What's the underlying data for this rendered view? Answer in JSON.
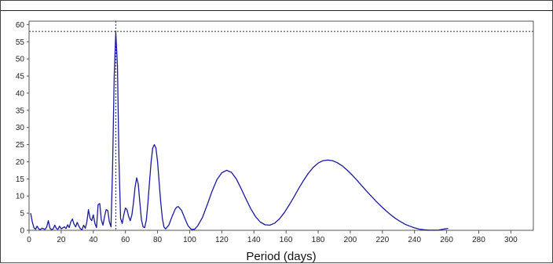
{
  "chart_data": {
    "type": "line",
    "title": "",
    "xlabel": "Period (days)",
    "ylabel": "",
    "xlim": [
      0,
      314
    ],
    "ylim": [
      0,
      61
    ],
    "x_ticks": [
      0,
      20,
      40,
      60,
      80,
      100,
      120,
      140,
      160,
      180,
      200,
      220,
      240,
      260,
      280,
      300
    ],
    "y_ticks": [
      0,
      5,
      10,
      15,
      20,
      25,
      30,
      35,
      40,
      45,
      50,
      55,
      60
    ],
    "grid": false,
    "threshold_line": {
      "y": 58,
      "style": "dashed"
    },
    "peak_marker": {
      "x": 54,
      "style": "dashed"
    },
    "line_color": "#1a1a9e",
    "series": [
      {
        "points": [
          [
            1,
            5
          ],
          [
            2,
            2.5
          ],
          [
            3,
            0.8
          ],
          [
            4,
            0.3
          ],
          [
            5,
            1.2
          ],
          [
            6,
            0.4
          ],
          [
            7,
            0.2
          ],
          [
            8,
            0.6
          ],
          [
            10,
            0.3
          ],
          [
            11,
            1.0
          ],
          [
            12,
            2.8
          ],
          [
            13,
            0.6
          ],
          [
            14,
            0.2
          ],
          [
            15,
            0.4
          ],
          [
            16,
            1.5
          ],
          [
            17,
            0.5
          ],
          [
            18,
            0.3
          ],
          [
            19,
            1.2
          ],
          [
            20,
            0.4
          ],
          [
            22,
            1.0
          ],
          [
            23,
            0.5
          ],
          [
            24,
            1.6
          ],
          [
            25,
            0.8
          ],
          [
            26,
            2.5
          ],
          [
            27,
            3.3
          ],
          [
            28,
            1.8
          ],
          [
            29,
            1.0
          ],
          [
            30,
            2.3
          ],
          [
            31,
            1.2
          ],
          [
            32,
            0.4
          ],
          [
            33,
            0.2
          ],
          [
            34,
            1.5
          ],
          [
            35,
            0.6
          ],
          [
            36,
            2.5
          ],
          [
            37,
            6.0
          ],
          [
            38,
            3.5
          ],
          [
            39,
            2.8
          ],
          [
            40,
            4.5
          ],
          [
            41,
            2.0
          ],
          [
            42,
            0.8
          ],
          [
            43,
            7.5
          ],
          [
            44,
            7.8
          ],
          [
            45,
            3.0
          ],
          [
            46,
            1.5
          ],
          [
            47,
            4.0
          ],
          [
            48,
            6.0
          ],
          [
            49,
            5.8
          ],
          [
            50,
            2.5
          ],
          [
            51,
            1.0
          ],
          [
            52,
            18
          ],
          [
            53,
            45
          ],
          [
            54,
            57.8
          ],
          [
            55,
            48
          ],
          [
            56,
            20
          ],
          [
            57,
            3.5
          ],
          [
            58,
            2.0
          ],
          [
            59,
            4.5
          ],
          [
            60,
            6.5
          ],
          [
            61,
            6.0
          ],
          [
            62,
            4.0
          ],
          [
            63,
            2.8
          ],
          [
            64,
            4.5
          ],
          [
            65,
            8.0
          ],
          [
            66,
            12.5
          ],
          [
            67,
            15.3
          ],
          [
            68,
            13.5
          ],
          [
            69,
            8.0
          ],
          [
            70,
            3.0
          ],
          [
            71,
            1.0
          ],
          [
            72,
            0.8
          ],
          [
            73,
            3.0
          ],
          [
            74,
            8.0
          ],
          [
            75,
            14.0
          ],
          [
            76,
            20.0
          ],
          [
            77,
            24.0
          ],
          [
            78,
            25.0
          ],
          [
            79,
            24.0
          ],
          [
            80,
            20.0
          ],
          [
            81,
            14.0
          ],
          [
            82,
            8.0
          ],
          [
            83,
            3.5
          ],
          [
            84,
            1.0
          ],
          [
            85,
            0.4
          ],
          [
            87,
            1.5
          ],
          [
            89,
            4.0
          ],
          [
            91,
            6.2
          ],
          [
            92,
            6.8
          ],
          [
            93,
            6.9
          ],
          [
            95,
            5.8
          ],
          [
            97,
            3.5
          ],
          [
            99,
            1.3
          ],
          [
            101,
            0.3
          ],
          [
            103,
            0.3
          ],
          [
            105,
            1.3
          ],
          [
            108,
            3.8
          ],
          [
            111,
            7.5
          ],
          [
            114,
            11.5
          ],
          [
            117,
            14.8
          ],
          [
            120,
            16.8
          ],
          [
            123,
            17.5
          ],
          [
            126,
            16.9
          ],
          [
            129,
            15.0
          ],
          [
            132,
            12.2
          ],
          [
            135,
            9.2
          ],
          [
            138,
            6.3
          ],
          [
            141,
            4.0
          ],
          [
            144,
            2.4
          ],
          [
            147,
            1.6
          ],
          [
            150,
            1.5
          ],
          [
            153,
            2.1
          ],
          [
            156,
            3.4
          ],
          [
            159,
            5.2
          ],
          [
            162,
            7.4
          ],
          [
            165,
            9.8
          ],
          [
            168,
            12.3
          ],
          [
            171,
            14.6
          ],
          [
            174,
            16.7
          ],
          [
            177,
            18.4
          ],
          [
            180,
            19.6
          ],
          [
            183,
            20.3
          ],
          [
            186,
            20.5
          ],
          [
            189,
            20.3
          ],
          [
            192,
            19.7
          ],
          [
            195,
            18.8
          ],
          [
            198,
            17.6
          ],
          [
            201,
            16.2
          ],
          [
            204,
            14.7
          ],
          [
            207,
            13.1
          ],
          [
            210,
            11.5
          ],
          [
            213,
            10.0
          ],
          [
            216,
            8.5
          ],
          [
            219,
            7.1
          ],
          [
            222,
            5.8
          ],
          [
            225,
            4.6
          ],
          [
            228,
            3.5
          ],
          [
            231,
            2.6
          ],
          [
            234,
            1.8
          ],
          [
            237,
            1.2
          ],
          [
            240,
            0.7
          ],
          [
            243,
            0.35
          ],
          [
            246,
            0.15
          ],
          [
            249,
            0.05
          ],
          [
            252,
            0.05
          ],
          [
            255,
            0.1
          ],
          [
            257,
            0.25
          ],
          [
            259,
            0.4
          ],
          [
            261,
            0.55
          ]
        ]
      }
    ]
  }
}
